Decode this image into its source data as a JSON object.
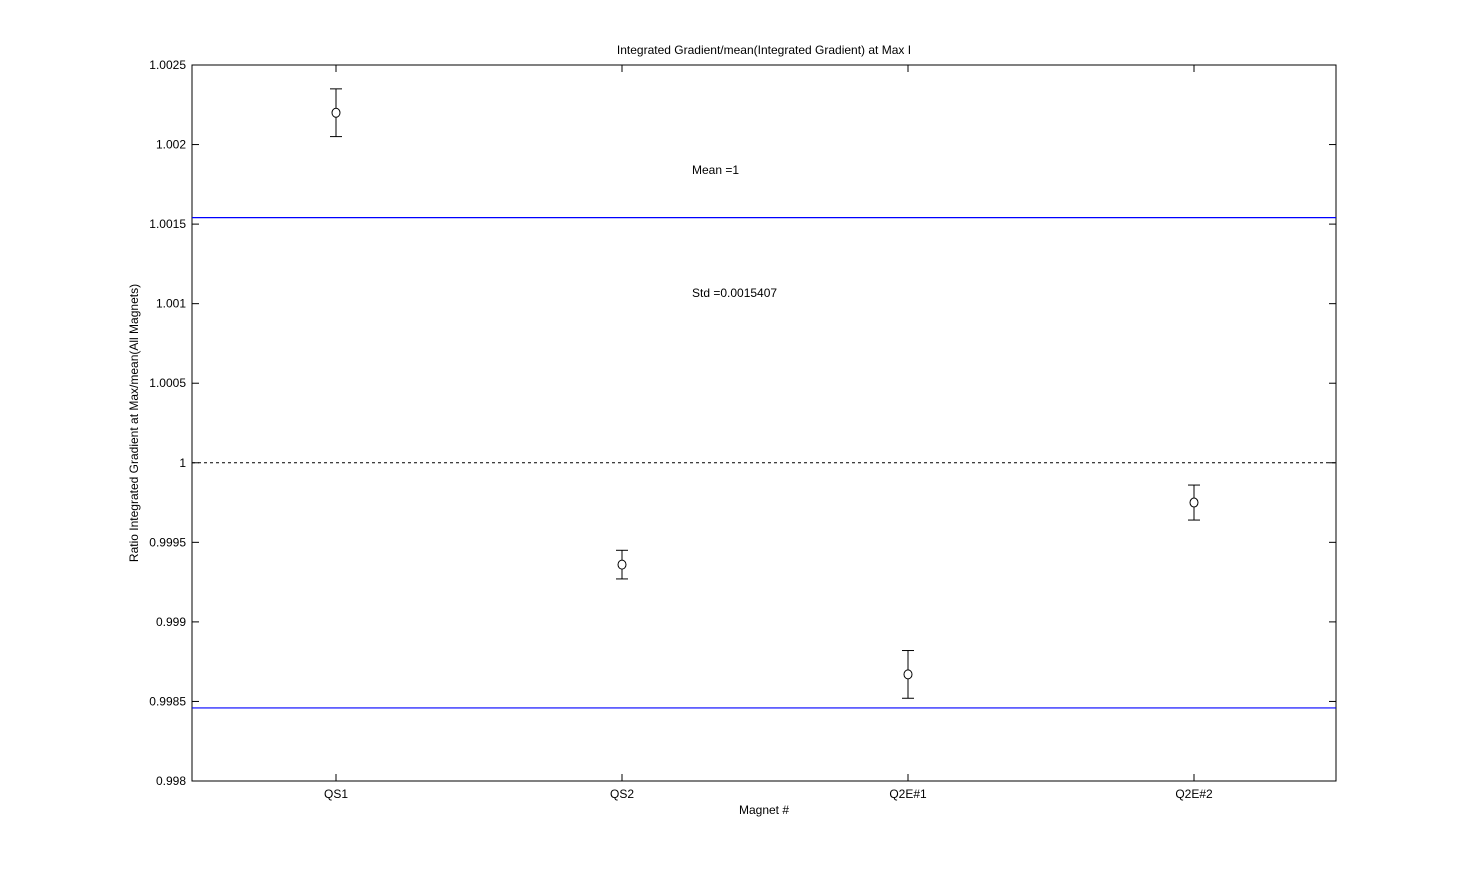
{
  "chart_data": {
    "type": "scatter",
    "title": "Integrated Gradient/mean(Integrated Gradient) at Max I",
    "xlabel": "Magnet #",
    "ylabel": "Ratio Integrated Gradient at Max/mean(All Magnets)",
    "categories": [
      "QS1",
      "QS2",
      "Q2E#1",
      "Q2E#2"
    ],
    "values": [
      1.0022,
      0.99936,
      0.99867,
      0.99975
    ],
    "errors": [
      0.00015,
      9e-05,
      0.00015,
      0.00011
    ],
    "ylim": [
      0.998,
      1.0025
    ],
    "yticks": [
      "0.998",
      "0.9985",
      "0.999",
      "0.9995",
      "1",
      "1.0005",
      "1.001",
      "1.0015",
      "1.002",
      "1.0025"
    ],
    "mean_line": 1,
    "std_lines": [
      1.0015407,
      0.9984593
    ],
    "annotations": [
      "Mean =1",
      "Std =0.0015407"
    ],
    "grid": false,
    "marker_color": "#000000",
    "std_line_color": "#0000ff"
  }
}
